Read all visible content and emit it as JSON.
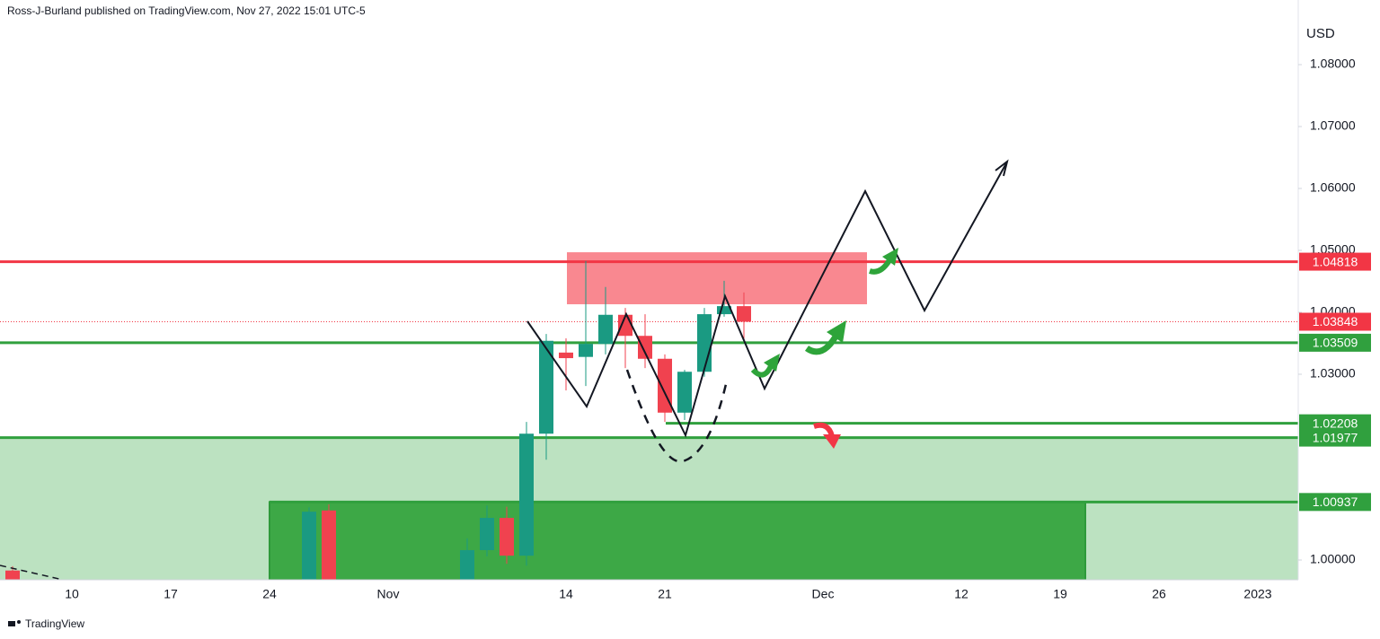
{
  "header": "Ross-J-Burland published on TradingView.com, Nov 27, 2022 15:01 UTC-5",
  "branding": "TradingView",
  "chart_data": {
    "type": "candlestick",
    "y_axis_label": "USD",
    "categories": [
      null,
      null,
      null,
      "10",
      null,
      null,
      null,
      null,
      "17",
      null,
      null,
      null,
      null,
      "24",
      null,
      null,
      null,
      null,
      null,
      "Nov",
      null,
      null,
      null,
      null,
      null,
      null,
      null,
      null,
      "14",
      null,
      null,
      null,
      null,
      "21",
      null,
      null,
      null,
      null,
      null,
      null,
      null,
      "Dec",
      null,
      null,
      null,
      null,
      null,
      null,
      "12",
      null,
      null,
      null,
      null,
      "19",
      null,
      null,
      null,
      null,
      "26",
      null,
      null,
      null,
      null,
      "2023",
      null
    ],
    "open": [
      0.9983,
      null,
      null,
      null,
      null,
      null,
      null,
      null,
      null,
      null,
      null,
      null,
      null,
      null,
      null,
      0.996,
      1.008,
      null,
      null,
      null,
      null,
      null,
      null,
      0.9965,
      1.0016,
      1.0068,
      1.0007,
      1.0204,
      1.0335,
      1.0328,
      1.0349,
      1.0396,
      1.0362,
      1.0325,
      1.0238,
      1.0304,
      1.0397,
      1.041,
      null,
      null,
      null,
      null,
      null,
      null,
      null,
      null,
      null,
      null,
      null,
      null,
      null,
      null,
      null,
      null,
      null,
      null,
      null,
      null,
      null,
      null,
      null,
      null,
      null,
      null,
      null
    ],
    "high": [
      0.999,
      null,
      null,
      null,
      null,
      null,
      null,
      null,
      null,
      null,
      null,
      null,
      null,
      null,
      null,
      1.0085,
      1.009,
      null,
      null,
      null,
      null,
      null,
      null,
      1.0035,
      1.0088,
      1.0086,
      1.0223,
      1.0365,
      1.0358,
      1.0483,
      1.0441,
      1.0407,
      1.0397,
      1.0332,
      1.0307,
      1.0407,
      1.0451,
      1.0432,
      null,
      null,
      null,
      null,
      null,
      null,
      null,
      null,
      null,
      null,
      null,
      null,
      null,
      null,
      null,
      null,
      null,
      null,
      null,
      null,
      null,
      null,
      null,
      null,
      null,
      null,
      null
    ],
    "low": [
      0.993,
      null,
      null,
      null,
      null,
      null,
      null,
      null,
      null,
      null,
      null,
      null,
      null,
      null,
      null,
      0.994,
      0.994,
      null,
      null,
      null,
      null,
      null,
      null,
      0.995,
      1.0006,
      0.9994,
      0.9991,
      1.0162,
      1.0274,
      1.0281,
      1.0332,
      1.031,
      1.031,
      1.0223,
      1.0226,
      1.0296,
      1.0393,
      1.0357,
      null,
      null,
      null,
      null,
      null,
      null,
      null,
      null,
      null,
      null,
      null,
      null,
      null,
      null,
      null,
      null,
      null,
      null,
      null,
      null,
      null,
      null,
      null,
      null,
      null,
      null,
      null
    ],
    "close": [
      0.995,
      null,
      null,
      null,
      null,
      null,
      null,
      null,
      null,
      null,
      null,
      null,
      null,
      null,
      null,
      1.0078,
      0.9955,
      null,
      null,
      null,
      null,
      null,
      null,
      1.0016,
      1.0068,
      1.0007,
      1.0204,
      1.0354,
      1.0326,
      1.0349,
      1.0396,
      1.0362,
      1.0325,
      1.0238,
      1.0304,
      1.0397,
      1.041,
      1.03848,
      null,
      null,
      null,
      null,
      null,
      null,
      null,
      null,
      null,
      null,
      null,
      null,
      null,
      null,
      null,
      null,
      null,
      null,
      null,
      null,
      null,
      null,
      null,
      null,
      null,
      null,
      null
    ],
    "up_color": "#1a9a82",
    "down_color": "#f0424f",
    "ylim": [
      0.99681,
      1.08609
    ],
    "yticks": [
      {
        "value": 1.0,
        "label": "1.00000"
      },
      {
        "value": 1.03,
        "label": "1.03000"
      },
      {
        "value": 1.04,
        "label": "1.04000"
      },
      {
        "value": 1.05,
        "label": "1.05000"
      },
      {
        "value": 1.06,
        "label": "1.06000"
      },
      {
        "value": 1.07,
        "label": "1.07000"
      },
      {
        "value": 1.08,
        "label": "1.08000"
      }
    ],
    "zones": [
      {
        "top": 1.01977,
        "color": "#bce2c1"
      },
      {
        "top": 1.00937,
        "color": "#3da846"
      },
      {
        "top": 1.0497,
        "bottom": 1.0413,
        "color": "#f98890"
      }
    ],
    "levels": [
      {
        "value": 1.04818,
        "color": "#f23645"
      },
      {
        "value": 1.03509,
        "color": "#30a03e"
      },
      {
        "value": 1.02208,
        "color": "#30a03e"
      },
      {
        "value": 1.01977,
        "color": "#30a03e"
      },
      {
        "value": 1.00937,
        "color": "#30a03e"
      }
    ],
    "last_price": {
      "value": 1.03848,
      "color": "#f23645"
    }
  }
}
